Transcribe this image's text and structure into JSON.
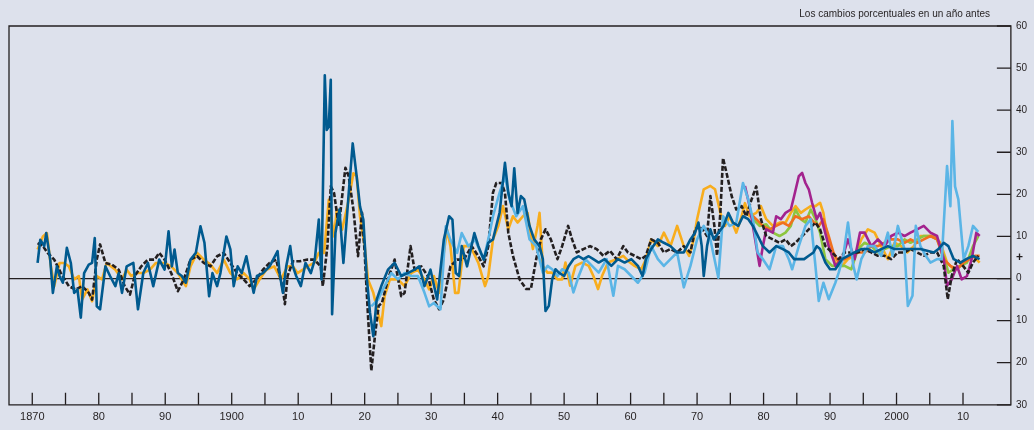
{
  "chart_data": {
    "type": "line",
    "ylabel": "Los cambios porcentuales en un año antes",
    "annotations": [
      "+",
      "-"
    ],
    "xlim": [
      1866.5,
      2017.2
    ],
    "xticks": [
      {
        "value": 1870,
        "label": "1870"
      },
      {
        "value": 1875,
        "label": null
      },
      {
        "value": 1880,
        "label": "80"
      },
      {
        "value": 1885,
        "label": null
      },
      {
        "value": 1890,
        "label": "90"
      },
      {
        "value": 1895,
        "label": null
      },
      {
        "value": 1900,
        "label": "1900"
      },
      {
        "value": 1905,
        "label": null
      },
      {
        "value": 1910,
        "label": "10"
      },
      {
        "value": 1915,
        "label": null
      },
      {
        "value": 1920,
        "label": "20"
      },
      {
        "value": 1925,
        "label": null
      },
      {
        "value": 1930,
        "label": "30"
      },
      {
        "value": 1935,
        "label": null
      },
      {
        "value": 1940,
        "label": "40"
      },
      {
        "value": 1945,
        "label": null
      },
      {
        "value": 1950,
        "label": "50"
      },
      {
        "value": 1955,
        "label": null
      },
      {
        "value": 1960,
        "label": "60"
      },
      {
        "value": 1965,
        "label": null
      },
      {
        "value": 1970,
        "label": "70"
      },
      {
        "value": 1975,
        "label": null
      },
      {
        "value": 1980,
        "label": "80"
      },
      {
        "value": 1985,
        "label": null
      },
      {
        "value": 1990,
        "label": "90"
      },
      {
        "value": 1995,
        "label": null
      },
      {
        "value": 2000,
        "label": "2000"
      },
      {
        "value": 2005,
        "label": null
      },
      {
        "value": 2010,
        "label": "10"
      }
    ],
    "ylim": [
      -30,
      60
    ],
    "yticks": [
      {
        "value": -30,
        "label": "30"
      },
      {
        "value": -20,
        "label": "20"
      },
      {
        "value": -10,
        "label": "10"
      },
      0,
      10,
      20,
      30,
      40,
      50,
      60
    ],
    "ref_lines": [
      {
        "axis": "y",
        "value": 0,
        "color": "#231f20"
      }
    ],
    "marker": "none",
    "line_style": "solid",
    "legend": false,
    "series": [
      {
        "color": "#005a8f",
        "x": [
          1870.8,
          1871.2,
          1871.8,
          1872.1,
          1872.7,
          1873.1,
          1873.7,
          1874.1,
          1874.6,
          1875.2,
          1875.8,
          1876.3,
          1876.8,
          1877.3,
          1877.8,
          1878.5,
          1879.0,
          1879.4,
          1879.7,
          1880.2,
          1881.0,
          1881.7,
          1882.5,
          1883.0,
          1883.5,
          1884.2,
          1885.2,
          1885.9,
          1886.7,
          1887.4,
          1888.2,
          1889.1,
          1889.9,
          1890.5,
          1891.0,
          1891.4,
          1891.9,
          1892.5,
          1893.1,
          1893.8,
          1894.6,
          1895.3,
          1895.9,
          1896.6,
          1897.1,
          1897.8,
          1898.3,
          1899.2,
          1899.8,
          1900.3,
          1900.9,
          1901.5,
          1902.2,
          1902.7,
          1903.3,
          1903.8,
          1904.7,
          1905.7,
          1906.9,
          1907.2,
          1907.7,
          1908.2,
          1908.8,
          1909.2,
          1909.7,
          1910.4,
          1911.1,
          1911.9,
          1912.5,
          1913.1,
          1913.5,
          1914.0,
          1914.3,
          1914.6,
          1914.9,
          1915.1,
          1915.6,
          1916.2,
          1916.8,
          1917.6,
          1918.2,
          1918.8,
          1919.3,
          1919.8,
          1920.3,
          1920.8,
          1921.3,
          1921.8,
          1922.5,
          1923.5,
          1924.5,
          1925.5,
          1926.5,
          1927.5,
          1928.2,
          1929.0,
          1929.9,
          1930.9,
          1931.9,
          1932.7,
          1933.2,
          1933.7,
          1934.2,
          1934.6,
          1935.4,
          1936.5,
          1937.1,
          1937.9,
          1938.6,
          1939.3,
          1940.3,
          1941.1,
          1941.6,
          1942.1,
          1942.5,
          1943.0,
          1943.5,
          1944.0,
          1944.8,
          1945.5,
          1946.3,
          1946.8,
          1947.2,
          1947.7,
          1948.2,
          1948.7,
          1949.2,
          1950.0,
          1950.7,
          1951.4,
          1952.2,
          1952.9,
          1953.7,
          1954.4,
          1955.2,
          1956.1,
          1957.1,
          1958.1,
          1959.1,
          1960.1,
          1961.1,
          1961.8,
          1962.3,
          1963.1,
          1964.1,
          1965.0,
          1966.0,
          1967.0,
          1968.0,
          1969.0,
          1969.7,
          1970.2,
          1970.7,
          1971.0,
          1971.5,
          1972.0,
          1972.5,
          1973.2,
          1974.0,
          1974.7,
          1975.4,
          1976.2,
          1976.9,
          1977.7,
          1978.4,
          1978.9,
          1979.9,
          1980.9,
          1981.9,
          1982.9,
          1983.8,
          1984.6,
          1985.3,
          1986.1,
          1986.8,
          1987.5,
          1988.0,
          1988.5,
          1989.3,
          1990.0,
          1990.8,
          1991.8,
          1992.7,
          1993.7,
          1994.7,
          1995.7,
          1996.7,
          1997.7,
          1998.7,
          1999.7,
          2000.7,
          2001.6,
          2002.6,
          2003.6,
          2004.6,
          2005.6,
          2006.3,
          2007.1,
          2007.8,
          2008.6,
          2009.6,
          2010.5,
          2011.5,
          2012.5
        ],
        "values": [
          3.7,
          9.2,
          7.7,
          10.8,
          4.5,
          -3.4,
          2.9,
          0.6,
          -1.0,
          7.3,
          3.7,
          -3.4,
          -2.6,
          -9.3,
          1.3,
          3.3,
          3.7,
          9.6,
          -6.6,
          -7.3,
          2.9,
          0.6,
          -1.8,
          1.3,
          -3.4,
          2.9,
          3.7,
          -7.3,
          1.3,
          3.7,
          -1.8,
          4.5,
          2.1,
          11.2,
          2.9,
          6.9,
          1.3,
          0.6,
          -1.0,
          4.5,
          6.1,
          12.4,
          8.5,
          -4.2,
          1.3,
          -1.8,
          1.3,
          10.0,
          6.9,
          -1.8,
          2.9,
          1.3,
          5.3,
          1.3,
          -3.4,
          0.6,
          1.3,
          2.9,
          6.5,
          1.3,
          -3.4,
          2.9,
          7.7,
          2.9,
          0.6,
          -1.8,
          3.7,
          1.3,
          4.5,
          14.0,
          -0.2,
          48.3,
          35.3,
          36.1,
          47.2,
          -8.5,
          10.8,
          16.4,
          3.7,
          20.3,
          32.1,
          24.2,
          17.1,
          14.0,
          0.6,
          -8.1,
          -13.7,
          -5.0,
          -1.8,
          2.1,
          3.7,
          0.6,
          1.3,
          2.1,
          2.9,
          -1.8,
          2.1,
          -5.0,
          9.2,
          14.8,
          14.0,
          1.3,
          0.6,
          7.7,
          2.9,
          10.8,
          7.7,
          4.5,
          8.5,
          9.3,
          15.7,
          27.5,
          20.4,
          17.2,
          26.2,
          15.6,
          19.6,
          18.8,
          12.5,
          9.3,
          7.7,
          4.6,
          -7.7,
          -6.5,
          -0.2,
          2.2,
          1.4,
          0.6,
          3.0,
          4.6,
          5.3,
          4.6,
          5.3,
          4.6,
          3.8,
          4.6,
          3.0,
          4.6,
          3.8,
          4.6,
          3.0,
          0.6,
          4.6,
          7.0,
          9.3,
          8.5,
          7.7,
          6.2,
          6.2,
          9.3,
          10.9,
          13.3,
          7.7,
          0.6,
          7.7,
          11.7,
          9.3,
          10.9,
          12.5,
          15.6,
          13.3,
          12.5,
          14.8,
          14.1,
          12.5,
          10.9,
          7.7,
          6.2,
          7.7,
          7.0,
          6.2,
          4.6,
          4.6,
          4.6,
          5.4,
          6.2,
          7.7,
          7.0,
          3.8,
          2.2,
          2.2,
          4.6,
          5.4,
          6.2,
          7.0,
          7.0,
          6.2,
          7.0,
          7.7,
          7.0,
          7.0,
          7.0,
          7.0,
          7.0,
          6.6,
          6.2,
          7.0,
          8.5,
          7.7,
          4.6,
          3.8,
          4.6,
          5.4,
          4.6
        ]
      },
      {
        "color": "#5bb5e6",
        "x": [
          1921.0,
          1922.0,
          1923.0,
          1924.0,
          1925.0,
          1926.0,
          1927.0,
          1928.0,
          1929.0,
          1929.7,
          1930.4,
          1931.4,
          1932.2,
          1932.9,
          1933.9,
          1934.6,
          1935.6,
          1936.6,
          1937.9,
          1938.8,
          1939.3,
          1940.3,
          1941.1,
          1941.8,
          1942.8,
          1943.8,
          1944.8,
          1945.8,
          1946.8,
          1947.5,
          1948.2,
          1949.0,
          1949.7,
          1950.7,
          1951.4,
          1952.2,
          1953.2,
          1954.2,
          1955.2,
          1956.4,
          1957.4,
          1958.1,
          1959.1,
          1960.1,
          1961.1,
          1962.1,
          1963.1,
          1964.1,
          1965.0,
          1966.0,
          1967.0,
          1968.0,
          1969.0,
          1970.0,
          1971.0,
          1972.0,
          1973.2,
          1973.9,
          1974.9,
          1975.9,
          1976.9,
          1977.7,
          1978.4,
          1979.1,
          1979.9,
          1980.9,
          1981.9,
          1982.9,
          1983.8,
          1984.3,
          1985.3,
          1986.3,
          1987.1,
          1987.8,
          1988.3,
          1989.0,
          1989.8,
          1990.8,
          1991.3,
          1992.0,
          1992.7,
          1993.5,
          1994.0,
          1994.7,
          1995.7,
          1996.7,
          1997.7,
          1998.7,
          1999.4,
          2000.2,
          2001.2,
          2001.7,
          2002.4,
          2002.9,
          2003.6,
          2004.4,
          2005.1,
          2006.1,
          2006.8,
          2007.6,
          2008.1,
          2008.4,
          2008.8,
          2009.3,
          2010.1,
          2010.8,
          2011.5,
          2012.3
        ],
        "values": [
          -6.6,
          -5.0,
          -1.8,
          1.3,
          -0.2,
          1.3,
          0.6,
          0.6,
          -3.4,
          -6.6,
          -5.8,
          -7.3,
          12.4,
          9.2,
          6.1,
          10.8,
          7.7,
          9.2,
          4.5,
          10.8,
          14.8,
          20.4,
          24.3,
          18.8,
          14.8,
          17.2,
          9.3,
          7.7,
          1.4,
          3.0,
          2.2,
          0.6,
          2.2,
          1.4,
          -3.3,
          0.6,
          4.6,
          3.0,
          1.4,
          4.6,
          -4.1,
          3.0,
          2.2,
          0.6,
          -1.0,
          1.4,
          7.7,
          4.6,
          3.0,
          4.6,
          6.2,
          -2.1,
          3.0,
          9.3,
          12.5,
          9.3,
          0.2,
          14.8,
          12.5,
          13.3,
          22.7,
          18.8,
          14.1,
          6.2,
          4.6,
          2.2,
          7.7,
          7.7,
          4.6,
          2.2,
          7.7,
          12.5,
          14.1,
          3.0,
          -5.3,
          -1.0,
          -4.9,
          -1.0,
          1.4,
          5.4,
          13.3,
          3.0,
          -0.2,
          4.6,
          7.7,
          7.7,
          5.4,
          10.9,
          5.4,
          12.5,
          7.0,
          -6.5,
          -4.1,
          12.5,
          7.7,
          5.4,
          3.8,
          4.6,
          4.6,
          26.7,
          17.2,
          37.4,
          21.9,
          18.8,
          4.6,
          7.7,
          12.5,
          11.1
        ]
      },
      {
        "color": "#231f20",
        "line_style": "dashed",
        "x": [
          1870.8,
          1871.6,
          1872.3,
          1873.3,
          1874.3,
          1875.5,
          1876.5,
          1877.5,
          1878.5,
          1879.0,
          1879.7,
          1880.2,
          1881.0,
          1882.0,
          1883.0,
          1883.9,
          1884.7,
          1885.4,
          1886.4,
          1887.4,
          1888.4,
          1889.1,
          1889.9,
          1890.9,
          1891.9,
          1892.8,
          1893.8,
          1894.8,
          1895.8,
          1896.8,
          1897.8,
          1898.8,
          1899.8,
          1900.8,
          1901.8,
          1902.7,
          1903.7,
          1904.7,
          1905.7,
          1906.7,
          1907.7,
          1908.0,
          1908.4,
          1909.2,
          1910.2,
          1911.4,
          1912.4,
          1913.4,
          1913.7,
          1914.4,
          1914.9,
          1915.4,
          1916.1,
          1917.1,
          1917.6,
          1918.3,
          1919.0,
          1919.6,
          1920.0,
          1920.5,
          1921.0,
          1921.6,
          1922.1,
          1922.6,
          1923.5,
          1924.5,
          1925.5,
          1926.0,
          1926.9,
          1927.5,
          1928.5,
          1929.5,
          1930.4,
          1931.2,
          1931.9,
          1932.9,
          1933.9,
          1934.9,
          1936.1,
          1937.1,
          1937.9,
          1938.6,
          1939.3,
          1939.8,
          1940.6,
          1941.1,
          1941.6,
          1942.3,
          1943.3,
          1944.3,
          1945.0,
          1945.8,
          1946.5,
          1947.2,
          1948.0,
          1949.0,
          1949.7,
          1950.6,
          1951.2,
          1951.9,
          1952.9,
          1953.9,
          1954.9,
          1955.9,
          1956.9,
          1957.9,
          1958.9,
          1959.6,
          1960.6,
          1961.6,
          1962.3,
          1963.1,
          1964.1,
          1965.0,
          1966.0,
          1967.0,
          1968.0,
          1969.0,
          1969.7,
          1970.5,
          1971.5,
          1972.0,
          1972.6,
          1973.0,
          1973.5,
          1973.9,
          1974.5,
          1975.2,
          1975.9,
          1976.7,
          1977.4,
          1978.2,
          1978.9,
          1979.6,
          1980.4,
          1981.4,
          1982.4,
          1983.3,
          1984.1,
          1984.8,
          1985.8,
          1986.8,
          1987.8,
          1988.5,
          1989.3,
          1990.3,
          1991.3,
          1992.2,
          1993.2,
          1994.2,
          1995.2,
          1996.2,
          1997.2,
          1998.2,
          1999.2,
          2000.2,
          2001.2,
          2002.1,
          2003.1,
          2004.1,
          2005.1,
          2006.1,
          2007.1,
          2007.7,
          2008.3,
          2009.1,
          2010.0,
          2010.8,
          2011.5,
          2012.3
        ],
        "values": [
          8.4,
          7.7,
          6.1,
          4.5,
          1.3,
          -1.8,
          -2.6,
          -1.8,
          -3.4,
          -5.0,
          4.5,
          8.1,
          3.7,
          3.3,
          2.1,
          -1.8,
          -3.8,
          0.6,
          2.9,
          4.5,
          4.5,
          6.1,
          4.5,
          1.3,
          -3.0,
          -0.2,
          4.5,
          5.3,
          3.7,
          2.9,
          5.3,
          6.1,
          3.7,
          1.3,
          -0.2,
          -1.8,
          -0.2,
          2.1,
          3.7,
          4.5,
          -2.6,
          -6.1,
          0.6,
          4.1,
          4.1,
          4.5,
          4.5,
          2.9,
          -1.8,
          7.7,
          21.9,
          20.3,
          12.4,
          26.3,
          24.3,
          16.4,
          5.3,
          15.6,
          6.1,
          -8.9,
          -21.9,
          -12.8,
          -6.5,
          -5.8,
          -0.2,
          4.5,
          -4.2,
          -3.4,
          7.7,
          2.1,
          2.9,
          0.6,
          -5.0,
          -7.3,
          -5.0,
          2.9,
          4.5,
          4.5,
          7.7,
          5.3,
          2.9,
          7.7,
          20.4,
          22.7,
          22.7,
          20.4,
          10.9,
          5.4,
          -0.2,
          -2.5,
          -2.5,
          4.6,
          9.3,
          11.7,
          9.3,
          4.6,
          7.7,
          12.5,
          9.3,
          6.2,
          7.0,
          7.7,
          7.0,
          5.4,
          6.6,
          4.6,
          7.7,
          6.2,
          5.4,
          4.6,
          5.4,
          9.3,
          8.5,
          6.2,
          7.0,
          6.2,
          7.7,
          6.2,
          11.7,
          12.5,
          10.1,
          19.6,
          12.5,
          5.4,
          15.6,
          28.6,
          24.6,
          19.6,
          16.4,
          17.2,
          14.8,
          18.8,
          21.9,
          14.1,
          10.1,
          9.3,
          8.5,
          9.3,
          7.7,
          8.5,
          10.1,
          11.7,
          13.3,
          11.7,
          7.7,
          6.2,
          4.6,
          6.2,
          6.2,
          6.2,
          7.0,
          6.2,
          5.4,
          5.4,
          4.6,
          6.2,
          6.2,
          7.0,
          6.2,
          5.4,
          6.2,
          6.2,
          3.0,
          -4.9,
          0.6,
          4.6,
          3.0,
          1.4,
          3.8,
          5.4
        ]
      },
      {
        "color": "#a3238e",
        "x": [
          1977.2,
          1977.9,
          1978.9,
          1979.4,
          1979.9,
          1980.4,
          1981.4,
          1981.9,
          1982.6,
          1983.3,
          1984.1,
          1984.6,
          1985.3,
          1985.8,
          1986.3,
          1986.8,
          1987.3,
          1988.0,
          1988.5,
          1989.0,
          1989.8,
          1990.8,
          1991.8,
          1992.7,
          1993.7,
          1994.5,
          1995.2,
          1996.2,
          1997.2,
          1998.2,
          1999.2,
          2000.2,
          2001.2,
          2002.1,
          2003.1,
          2004.1,
          2005.1,
          2006.1,
          2007.1,
          2007.6,
          2008.3,
          2009.1,
          2009.8,
          2010.6,
          2011.3,
          2012.0,
          2012.5
        ],
        "values": [
          22.0,
          17.2,
          7.7,
          3.0,
          7.7,
          11.7,
          10.9,
          14.8,
          14.1,
          15.6,
          16.4,
          19.6,
          24.3,
          25.1,
          22.7,
          21.2,
          18.0,
          14.1,
          15.6,
          12.5,
          7.7,
          3.0,
          4.6,
          9.3,
          4.6,
          10.9,
          10.9,
          7.7,
          9.3,
          7.7,
          10.1,
          10.9,
          10.1,
          10.9,
          11.7,
          12.5,
          10.9,
          10.1,
          4.6,
          -1.7,
          -0.2,
          3.0,
          -0.2,
          0.6,
          4.6,
          10.9,
          10.1
        ]
      },
      {
        "color": "#f0701e",
        "x": [
          1977.9,
          1978.9,
          1979.9,
          1980.9,
          1981.9,
          1982.9,
          1983.8,
          1984.8,
          1985.8,
          1986.8,
          1987.6,
          1988.3,
          1989.0,
          1989.8,
          1990.5,
          1991.3,
          1992.2,
          1993.2,
          1994.2,
          1995.2,
          1996.2,
          1997.2,
          1998.2,
          1999.2,
          2000.2,
          2001.2,
          2002.1,
          2003.1,
          2004.1,
          2005.1,
          2006.1,
          2007.1,
          2008.1,
          2009.1,
          2010.1,
          2011.0,
          2011.8,
          2012.5
        ],
        "values": [
          15.6,
          14.1,
          12.5,
          11.7,
          12.5,
          13.3,
          12.5,
          14.8,
          14.1,
          14.8,
          13.3,
          12.5,
          14.1,
          10.1,
          6.2,
          3.8,
          4.6,
          5.4,
          6.2,
          6.2,
          7.7,
          7.7,
          8.5,
          9.3,
          9.3,
          8.5,
          9.3,
          8.5,
          9.3,
          10.1,
          9.3,
          4.6,
          3.0,
          2.2,
          3.8,
          4.6,
          5.4,
          5.4
        ]
      },
      {
        "color": "#8dc63f",
        "x": [
          1978.4,
          1979.4,
          1980.4,
          1981.4,
          1982.4,
          1983.3,
          1984.1,
          1984.8,
          1985.6,
          1986.3,
          1987.1,
          1987.8,
          1988.5,
          1989.3,
          1990.3,
          1991.3,
          1992.2,
          1993.2,
          1994.2,
          1995.2,
          1996.2,
          1997.2,
          1998.2,
          1999.2,
          2000.2,
          2001.2,
          2002.1,
          2003.1,
          2004.1,
          2005.1,
          2006.1,
          2007.1,
          2007.8,
          2008.6,
          2009.6,
          2010.6,
          2011.5,
          2012.3
        ],
        "values": [
          14.1,
          12.5,
          12.9,
          10.9,
          10.1,
          10.9,
          12.5,
          16.4,
          14.1,
          13.3,
          16.4,
          14.1,
          10.9,
          4.6,
          3.0,
          3.0,
          3.0,
          2.2,
          7.0,
          8.5,
          7.7,
          6.2,
          7.0,
          7.7,
          7.7,
          9.3,
          8.5,
          9.3,
          10.1,
          10.1,
          9.3,
          5.4,
          1.4,
          2.2,
          3.0,
          3.8,
          7.7,
          10.1
        ]
      },
      {
        "color": "#f8ad1d",
        "x": [
          1870.8,
          1871.6,
          1872.2,
          1872.8,
          1873.3,
          1874.1,
          1874.8,
          1875.5,
          1876.3,
          1877.0,
          1877.5,
          1878.3,
          1879.0,
          1879.7,
          1880.5,
          1881.2,
          1882.5,
          1883.5,
          1884.2,
          1884.9,
          1885.7,
          1886.7,
          1887.7,
          1888.6,
          1889.9,
          1890.9,
          1891.9,
          1893.1,
          1893.8,
          1894.8,
          1895.8,
          1896.8,
          1897.8,
          1898.8,
          1899.8,
          1900.8,
          1901.8,
          1902.7,
          1903.3,
          1904.2,
          1905.2,
          1906.4,
          1907.4,
          1908.4,
          1909.2,
          1909.9,
          1910.7,
          1911.4,
          1912.4,
          1913.1,
          1913.9,
          1914.6,
          1915.4,
          1915.8,
          1916.6,
          1917.6,
          1918.3,
          1918.8,
          1919.3,
          1920.0,
          1920.5,
          1921.3,
          1922.0,
          1922.5,
          1923.0,
          1923.8,
          1925.0,
          1926.0,
          1927.0,
          1928.0,
          1929.0,
          1929.7,
          1930.4,
          1931.2,
          1931.9,
          1932.4,
          1932.9,
          1933.6,
          1934.1,
          1934.9,
          1935.9,
          1937.1,
          1938.1,
          1938.6,
          1939.3,
          1940.1,
          1940.8,
          1941.6,
          1942.3,
          1943.0,
          1943.8,
          1944.5,
          1945.3,
          1946.0,
          1946.3,
          1946.8,
          1947.5,
          1948.2,
          1949.0,
          1949.7,
          1950.2,
          1950.9,
          1951.7,
          1952.7,
          1953.7,
          1954.4,
          1955.1,
          1955.7,
          1956.6,
          1957.9,
          1958.9,
          1959.9,
          1960.6,
          1961.6,
          1962.3,
          1963.1,
          1964.1,
          1965.0,
          1966.0,
          1967.0,
          1968.0,
          1968.8,
          1969.5,
          1970.0,
          1971.0,
          1972.0,
          1972.7,
          1973.5,
          1974.2,
          1974.9,
          1975.9,
          1976.7,
          1977.2,
          1977.9,
          1978.9,
          1979.6,
          1980.4,
          1981.4,
          1982.4,
          1983.3,
          1984.1,
          1984.8,
          1985.6,
          1986.3,
          1987.1,
          1987.8,
          1988.5,
          1989.0,
          1989.8,
          1990.8,
          1991.8,
          1992.7,
          1993.7,
          1994.7,
          1995.7,
          1996.7,
          1997.7,
          1998.7,
          1999.7,
          2000.7,
          2001.6,
          2002.6,
          2003.6,
          2004.6,
          2005.6,
          2006.6,
          2007.6,
          2008.6,
          2009.6,
          2010.5,
          2011.5,
          2012.5
        ],
        "values": [
          6.9,
          10.0,
          10.8,
          2.9,
          -1.8,
          3.7,
          3.7,
          2.9,
          -0.2,
          0.6,
          -5.0,
          -2.6,
          -5.4,
          0.6,
          -0.2,
          3.7,
          2.1,
          -0.2,
          2.1,
          0.6,
          1.3,
          1.3,
          2.1,
          3.7,
          3.7,
          2.9,
          1.3,
          -1.8,
          2.9,
          6.1,
          4.5,
          3.3,
          1.3,
          4.5,
          1.3,
          -0.2,
          1.3,
          -0.2,
          -2.6,
          -0.2,
          2.1,
          2.9,
          -0.2,
          2.9,
          2.9,
          1.3,
          2.1,
          2.9,
          3.7,
          6.1,
          6.1,
          18.7,
          10.0,
          16.4,
          11.6,
          18.7,
          25.0,
          24.3,
          14.8,
          7.7,
          -0.2,
          -3.4,
          -8.1,
          -11.3,
          -4.2,
          -0.2,
          -0.2,
          -1.8,
          1.3,
          2.1,
          -0.2,
          -2.6,
          0.6,
          -3.4,
          6.1,
          11.6,
          7.7,
          -3.4,
          -3.4,
          7.7,
          7.7,
          3.7,
          -1.8,
          0.6,
          9.3,
          12.5,
          17.2,
          11.7,
          14.8,
          13.3,
          14.8,
          15.6,
          7.0,
          12.5,
          15.6,
          3.0,
          1.4,
          1.4,
          -0.2,
          -0.2,
          3.8,
          -1.7,
          3.0,
          3.8,
          3.0,
          0.6,
          -2.5,
          0.6,
          3.8,
          4.6,
          5.4,
          3.8,
          3.0,
          2.2,
          4.6,
          9.3,
          7.7,
          10.9,
          7.7,
          12.5,
          7.7,
          5.4,
          9.3,
          14.1,
          21.2,
          22.0,
          21.2,
          15.6,
          12.5,
          14.8,
          10.9,
          14.8,
          17.9,
          14.8,
          15.6,
          17.2,
          14.1,
          12.5,
          13.3,
          13.3,
          15.6,
          17.2,
          15.6,
          16.4,
          17.2,
          17.2,
          18.0,
          15.6,
          7.7,
          3.8,
          3.0,
          4.6,
          5.4,
          9.3,
          11.7,
          10.9,
          7.7,
          4.6,
          8.5,
          7.7,
          6.2,
          7.7,
          10.1,
          10.1,
          10.1,
          8.5,
          3.8,
          2.2,
          3.0,
          4.6,
          5.4,
          3.8
        ]
      }
    ]
  }
}
